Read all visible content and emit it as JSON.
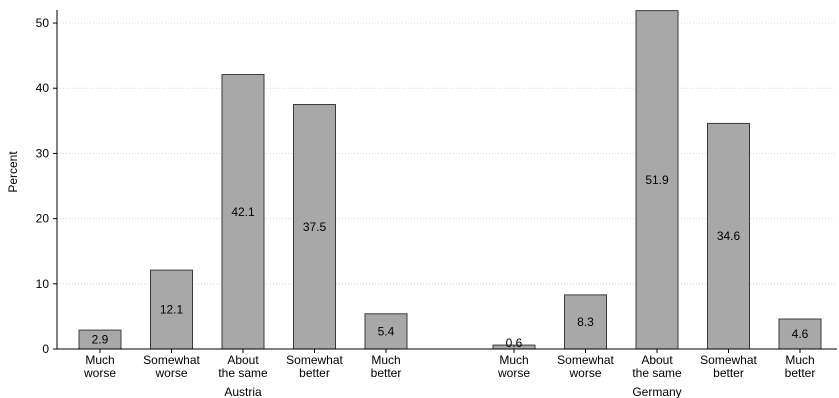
{
  "chart_data": {
    "type": "bar",
    "ylabel": "Percent",
    "ylim": [
      0,
      52
    ],
    "yticks": [
      0,
      10,
      20,
      30,
      40,
      50
    ],
    "grid": true,
    "bar_color": "#a8a8a8",
    "groups": [
      {
        "name": "Austria",
        "categories": [
          "Much\nworse",
          "Somewhat\nworse",
          "About\nthe same",
          "Somewhat\nbetter",
          "Much\nbetter"
        ],
        "values": [
          2.9,
          12.1,
          42.1,
          37.5,
          5.4
        ]
      },
      {
        "name": "Germany",
        "categories": [
          "Much\nworse",
          "Somewhat\nworse",
          "About\nthe same",
          "Somewhat\nbetter",
          "Much\nbetter"
        ],
        "values": [
          0.6,
          8.3,
          51.9,
          34.6,
          4.6
        ]
      }
    ]
  }
}
